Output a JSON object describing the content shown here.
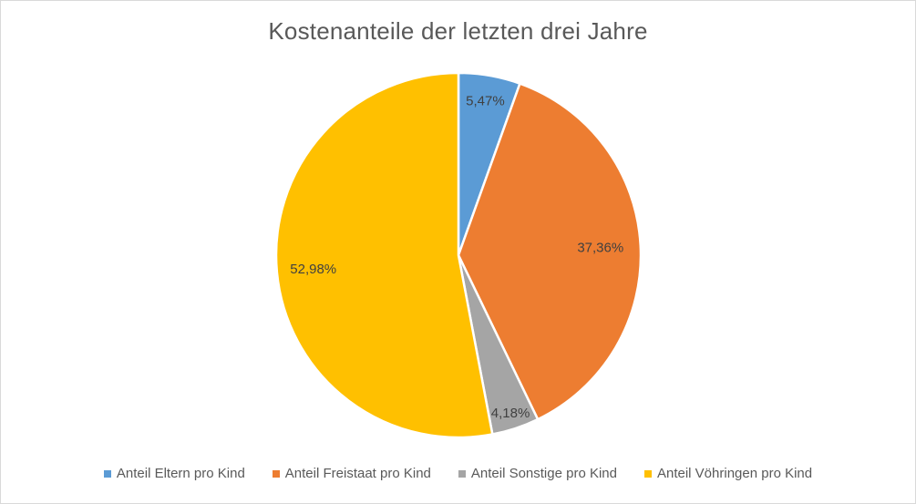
{
  "chart_data": {
    "type": "pie",
    "title": "Kostenanteile der letzten drei Jahre",
    "legend_position": "bottom",
    "slices": [
      {
        "name": "Anteil Eltern pro Kind",
        "value": 5.47,
        "label": "5,47%",
        "color": "#5b9bd5"
      },
      {
        "name": "Anteil Freistaat pro Kind",
        "value": 37.36,
        "label": "37,36%",
        "color": "#ed7d31"
      },
      {
        "name": "Anteil Sonstige pro Kind",
        "value": 4.18,
        "label": "4,18%",
        "color": "#a5a5a5"
      },
      {
        "name": "Anteil Vöhringen pro Kind",
        "value": 52.98,
        "label": "52,98%",
        "color": "#ffc000"
      }
    ]
  }
}
